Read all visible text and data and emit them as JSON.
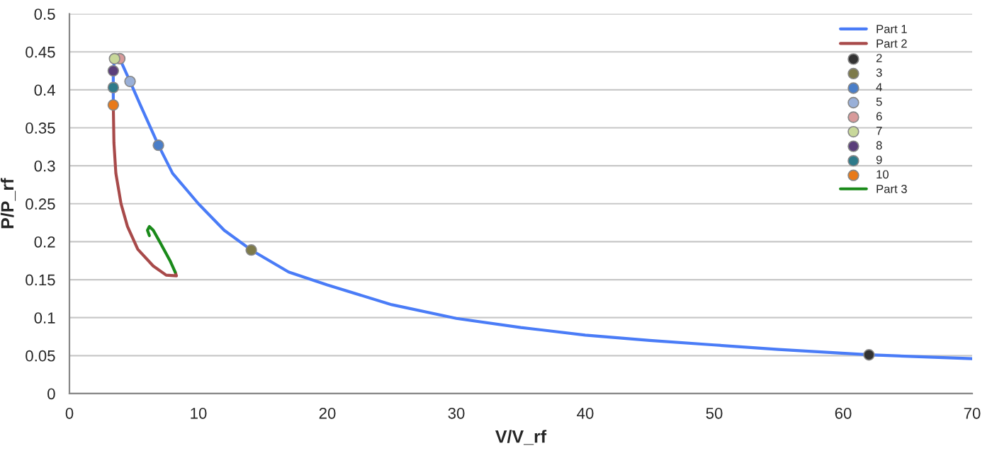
{
  "chart_data": {
    "type": "line",
    "xlabel": "V/V_rf",
    "ylabel": "P/P_rf",
    "xlim": [
      0,
      70
    ],
    "ylim": [
      0,
      0.5
    ],
    "xticks": [
      0,
      10,
      20,
      30,
      40,
      50,
      60,
      70
    ],
    "yticks": [
      0,
      0.05,
      0.1,
      0.15,
      0.2,
      0.25,
      0.3,
      0.35,
      0.4,
      0.45,
      0.5
    ],
    "grid": "y",
    "legend": "top right",
    "series": [
      {
        "name": "Part 1",
        "marker": "none",
        "color": "#4a7cf7",
        "x": [
          3.4,
          3.4,
          3.4,
          3.5,
          3.9,
          4.7,
          5.5,
          6.9,
          8,
          10,
          12,
          14.1,
          17,
          20,
          25,
          30,
          35,
          40,
          45,
          50,
          55,
          62,
          70
        ],
        "values": [
          0.38,
          0.403,
          0.425,
          0.441,
          0.441,
          0.411,
          0.38,
          0.327,
          0.29,
          0.25,
          0.215,
          0.189,
          0.16,
          0.143,
          0.117,
          0.099,
          0.087,
          0.077,
          0.07,
          0.064,
          0.058,
          0.051,
          0.046
        ]
      },
      {
        "name": "Part 2",
        "marker": "none",
        "color": "#a84a4a",
        "x": [
          3.4,
          3.45,
          3.6,
          4,
          4.5,
          5.3,
          6.5,
          7.5,
          8.3,
          8.2
        ],
        "values": [
          0.38,
          0.33,
          0.29,
          0.25,
          0.22,
          0.19,
          0.168,
          0.156,
          0.155,
          0.16
        ]
      },
      {
        "name": "2",
        "type": "scatter",
        "marker": "circle",
        "color": "#333333",
        "x": [
          62
        ],
        "values": [
          0.051
        ]
      },
      {
        "name": "3",
        "type": "scatter",
        "marker": "circle",
        "color": "#7d7a4a",
        "x": [
          14.1
        ],
        "values": [
          0.189
        ]
      },
      {
        "name": "4",
        "type": "scatter",
        "marker": "circle",
        "color": "#4a7ec8",
        "x": [
          6.9
        ],
        "values": [
          0.327
        ]
      },
      {
        "name": "5",
        "type": "scatter",
        "marker": "circle",
        "color": "#9ab0d8",
        "x": [
          4.7
        ],
        "values": [
          0.411
        ]
      },
      {
        "name": "6",
        "type": "scatter",
        "marker": "circle",
        "color": "#d89a9a",
        "x": [
          3.9
        ],
        "values": [
          0.441
        ]
      },
      {
        "name": "7",
        "type": "scatter",
        "marker": "circle",
        "color": "#c8d89a",
        "x": [
          3.5
        ],
        "values": [
          0.441
        ]
      },
      {
        "name": "8",
        "type": "scatter",
        "marker": "circle",
        "color": "#5a3e7a",
        "x": [
          3.4
        ],
        "values": [
          0.425
        ]
      },
      {
        "name": "9",
        "type": "scatter",
        "marker": "circle",
        "color": "#2e7a8a",
        "x": [
          3.4
        ],
        "values": [
          0.403
        ]
      },
      {
        "name": "10",
        "type": "scatter",
        "marker": "circle",
        "color": "#e87a1a",
        "x": [
          3.4
        ],
        "values": [
          0.38
        ]
      },
      {
        "name": "Part 3",
        "marker": "none",
        "color": "#1a8a1a",
        "x": [
          8.2,
          7.8,
          7.0,
          6.5,
          6.2,
          6.05,
          6.2
        ],
        "values": [
          0.16,
          0.175,
          0.2,
          0.215,
          0.22,
          0.215,
          0.208
        ]
      }
    ]
  }
}
